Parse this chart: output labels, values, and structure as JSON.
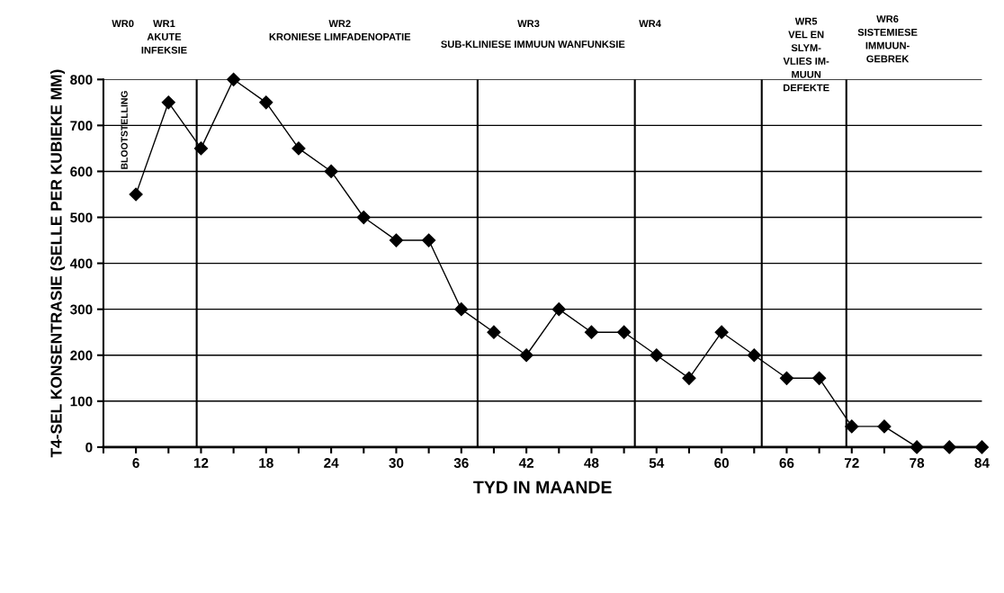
{
  "chart_data": {
    "type": "line",
    "xlabel": "TYD IN MAANDE",
    "ylabel": "T4-SEL KONSENTRASIE (SELLE PER KUBIEKE MM)",
    "x": [
      6,
      9,
      12,
      15,
      18,
      21,
      24,
      27,
      30,
      33,
      36,
      39,
      42,
      45,
      48,
      51,
      54,
      57,
      60,
      63,
      66,
      69,
      72,
      75,
      78,
      81,
      84
    ],
    "series": [
      {
        "color": "#000000",
        "values": [
          550,
          750,
          650,
          800,
          750,
          650,
          600,
          500,
          450,
          450,
          300,
          250,
          200,
          300,
          250,
          250,
          200,
          150,
          250,
          200,
          150,
          150,
          45,
          45,
          0,
          0,
          0
        ]
      }
    ],
    "xlim": [
      3,
      84
    ],
    "xticks": [
      {
        "value": 3,
        "label": null
      },
      6,
      {
        "value": 9,
        "label": null
      },
      12,
      {
        "value": 15,
        "label": null
      },
      18,
      {
        "value": 21,
        "label": null
      },
      24,
      {
        "value": 27,
        "label": null
      },
      30,
      {
        "value": 33,
        "label": null
      },
      36,
      {
        "value": 39,
        "label": null
      },
      42,
      {
        "value": 45,
        "label": null
      },
      48,
      {
        "value": 51,
        "label": null
      },
      54,
      {
        "value": 57,
        "label": null
      },
      60,
      {
        "value": 63,
        "label": null
      },
      66,
      {
        "value": 69,
        "label": null
      },
      72,
      {
        "value": 75,
        "label": null
      },
      78,
      {
        "value": 81,
        "label": null
      },
      84
    ],
    "ylim": [
      0,
      800
    ],
    "yticks": [
      0,
      100,
      200,
      300,
      400,
      500,
      600,
      700,
      800
    ],
    "grid": "y",
    "marker": "diamond",
    "line_style": "solid",
    "ref_lines": [
      {
        "axis": "x",
        "value": 11.6,
        "color": "#000000"
      },
      {
        "axis": "x",
        "value": 37.5,
        "color": "#000000"
      },
      {
        "axis": "x",
        "value": 52,
        "color": "#000000"
      },
      {
        "axis": "x",
        "value": 63.7,
        "color": "#000000"
      },
      {
        "axis": "x",
        "value": 71.5,
        "color": "#000000"
      }
    ],
    "annotations": [
      "WR0",
      "WR1\nAKUTE\nINFEKSIE",
      "WR2\nKRONIESE LIMFADENOPATIE",
      "WR3",
      "SUB-KLINIESE IMMUUN WANFUNKSIE",
      "WR4",
      "WR5\nVEL EN\nSLYM-\nVLIES IM-\nMUUN\nDEFEKTE",
      "WR6\nSISTEMIESE\nIMMUUN-\nGEBREK",
      "BLOOTSTELLING"
    ]
  }
}
